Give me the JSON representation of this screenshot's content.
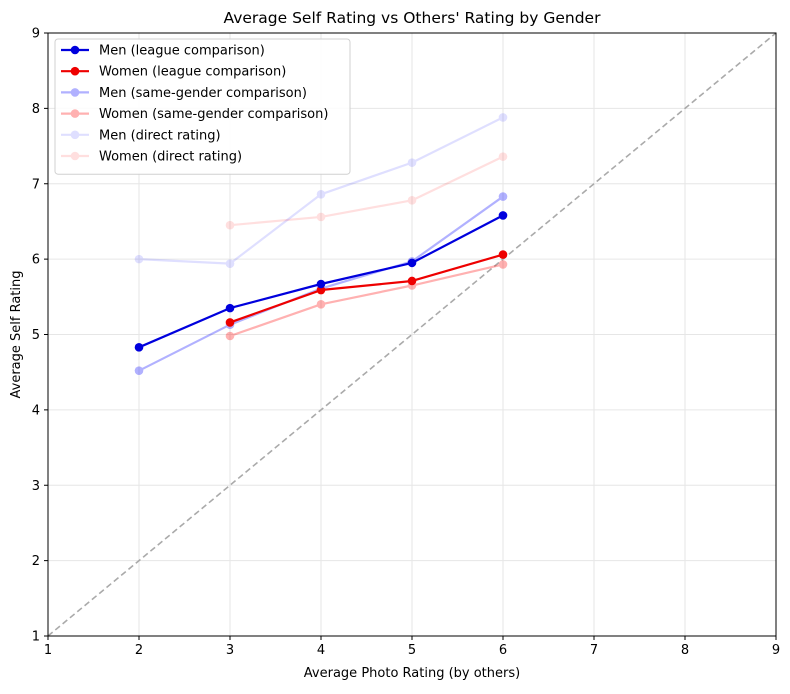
{
  "chart_data": {
    "type": "line",
    "title": "Average Self Rating vs Others' Rating by Gender",
    "xlabel": "Average Photo Rating (by others)",
    "ylabel": "Average Self Rating",
    "xlim": [
      1,
      9
    ],
    "ylim": [
      1,
      9
    ],
    "xticks": [
      "1",
      "2",
      "3",
      "4",
      "5",
      "6",
      "7",
      "8",
      "9"
    ],
    "yticks": [
      "1",
      "2",
      "3",
      "4",
      "5",
      "6",
      "7",
      "8",
      "9"
    ],
    "grid": true,
    "legend_position": "upper-left",
    "reference_line": {
      "style": "dashed",
      "color": "#aaaaaa",
      "x": [
        1,
        9
      ],
      "y": [
        1,
        9
      ]
    },
    "series": [
      {
        "name": "Men (league comparison)",
        "color": "#0000dd",
        "opacity": 1.0,
        "x": [
          2,
          3,
          4,
          5,
          6
        ],
        "y": [
          4.83,
          5.35,
          5.67,
          5.95,
          6.58
        ]
      },
      {
        "name": "Women (league comparison)",
        "color": "#ee0000",
        "opacity": 1.0,
        "x": [
          3,
          4,
          5,
          6
        ],
        "y": [
          5.16,
          5.59,
          5.71,
          6.06
        ]
      },
      {
        "name": "Men (same-gender comparison)",
        "color": "#0000ff",
        "opacity": 0.3,
        "x": [
          2,
          3,
          4,
          5,
          6
        ],
        "y": [
          4.52,
          5.13,
          5.61,
          5.97,
          6.83
        ]
      },
      {
        "name": "Women (same-gender comparison)",
        "color": "#ff0000",
        "opacity": 0.3,
        "x": [
          3,
          4,
          5,
          6
        ],
        "y": [
          4.98,
          5.4,
          5.65,
          5.93
        ]
      },
      {
        "name": "Men (direct rating)",
        "color": "#0000ff",
        "opacity": 0.12,
        "x": [
          2,
          3,
          4,
          5,
          6
        ],
        "y": [
          6.0,
          5.94,
          6.86,
          7.28,
          7.88
        ]
      },
      {
        "name": "Women (direct rating)",
        "color": "#ff0000",
        "opacity": 0.12,
        "x": [
          3,
          4,
          5,
          6
        ],
        "y": [
          6.45,
          6.56,
          6.78,
          7.36
        ]
      }
    ]
  }
}
